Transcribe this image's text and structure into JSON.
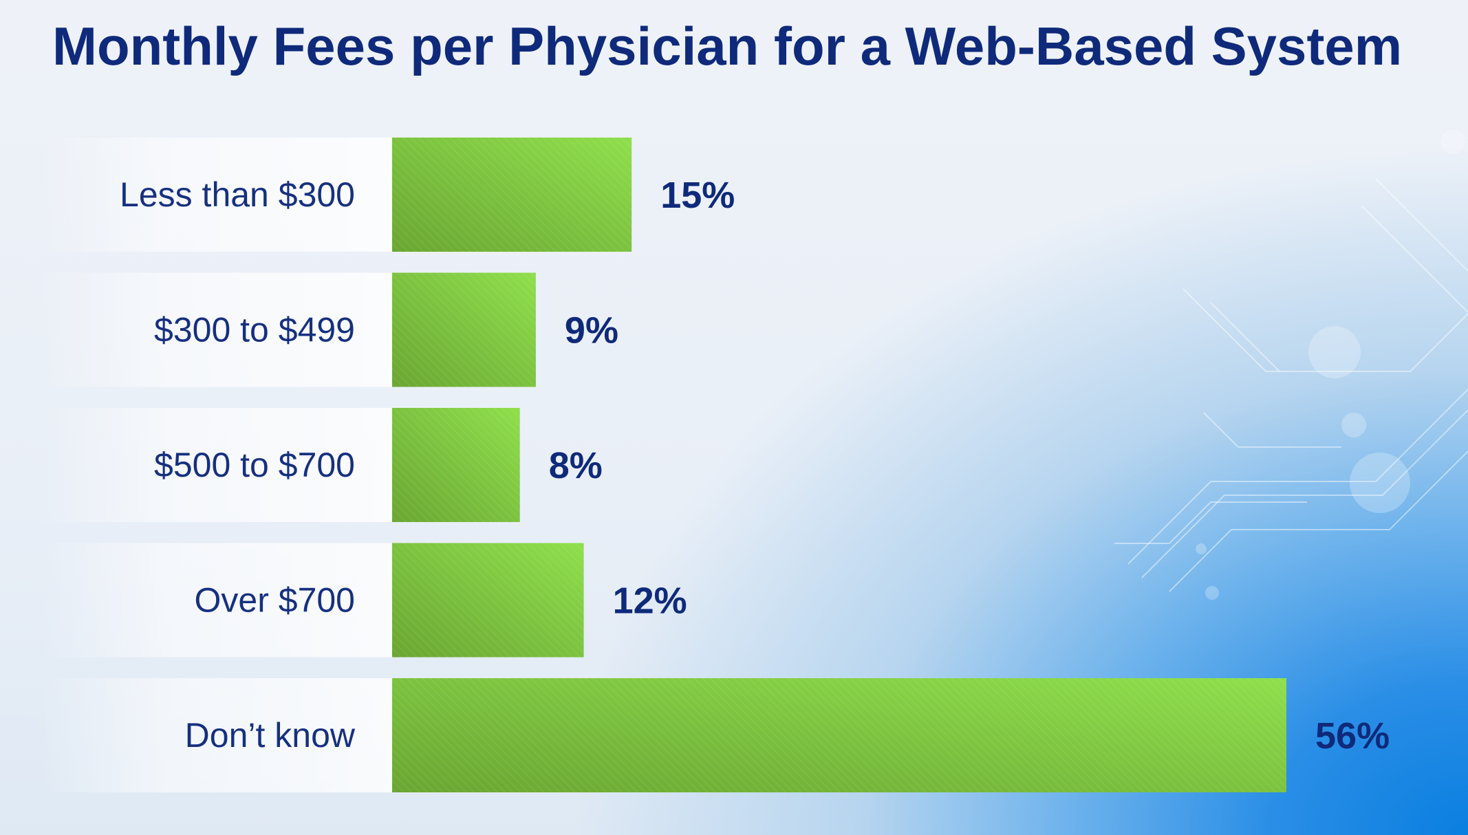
{
  "chart_data": {
    "type": "bar",
    "orientation": "horizontal",
    "title": "Monthly Fees per Physician for a Web-Based System",
    "categories": [
      "Less than $300",
      "$300 to $499",
      "$500 to $700",
      "Over $700",
      "Don’t know"
    ],
    "values": [
      15,
      9,
      8,
      12,
      56
    ],
    "value_labels": [
      "15%",
      "9%",
      "8%",
      "12%",
      "56%"
    ],
    "unit": "%",
    "xlim": [
      0,
      56
    ],
    "xlabel": "",
    "ylabel": "",
    "grid": false,
    "legend": "none",
    "colors": {
      "bar_dark": "#6aa632",
      "bar_light": "#8fdf4c",
      "label_text": "#16307f",
      "value_text": "#0f2a7a",
      "title_text": "#0f2a7a"
    }
  }
}
